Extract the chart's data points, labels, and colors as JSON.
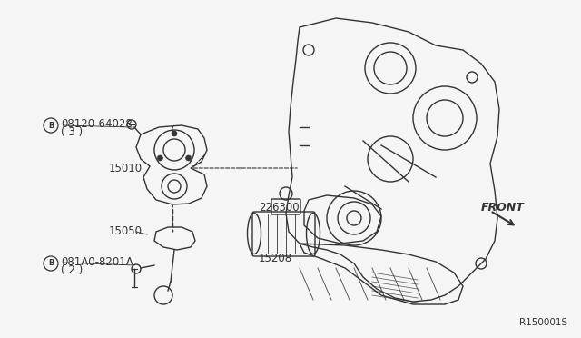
{
  "bg_color": "#f5f5f5",
  "line_color": "#333333",
  "title_ref": "R150001S",
  "labels": {
    "bolt1": "B 08120-64028\n  ( 3 )",
    "part15010": "15010",
    "part15050": "15050",
    "bolt2": "B 081A0-8201A\n  ( 2 )",
    "part22630": "226300",
    "part15208": "15208",
    "front": "FRONT"
  },
  "figsize": [
    6.4,
    3.72
  ],
  "dpi": 100
}
